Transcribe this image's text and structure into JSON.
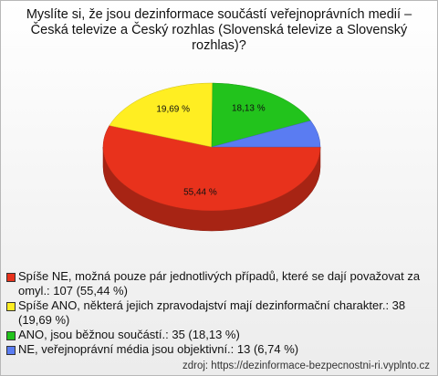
{
  "chart_data": {
    "type": "pie",
    "title": "Myslíte si, že jsou dezinformace součástí veřejnoprávních medií – Česká televize a Český rozhlas (Slovenská televize a Slovenský rozhlas)?",
    "categories": [
      "Spíše NE, možná pouze pár jednotlivých případů, které se dají považovat za omyl.: 107 (55,44 %)",
      "Spíše ANO, některá jejich zpravodajství mají dezinformační charakter.: 38 (19,69 %)",
      "ANO, jsou běžnou součástí.: 35 (18,13 %)",
      "NE, veřejnoprávní média jsou objektivní.: 13 (6,74 %)"
    ],
    "values": [
      55.44,
      19.69,
      18.13,
      6.74
    ],
    "value_labels": [
      "55,44 %",
      "19,69 %",
      "18,13 %",
      null
    ],
    "colors": [
      "#e8321c",
      "#ffee22",
      "#22c31c",
      "#5a7cf2"
    ],
    "source": "zdroj: https://dezinformace-bezpecnostni-ri.vyplnto.cz"
  }
}
